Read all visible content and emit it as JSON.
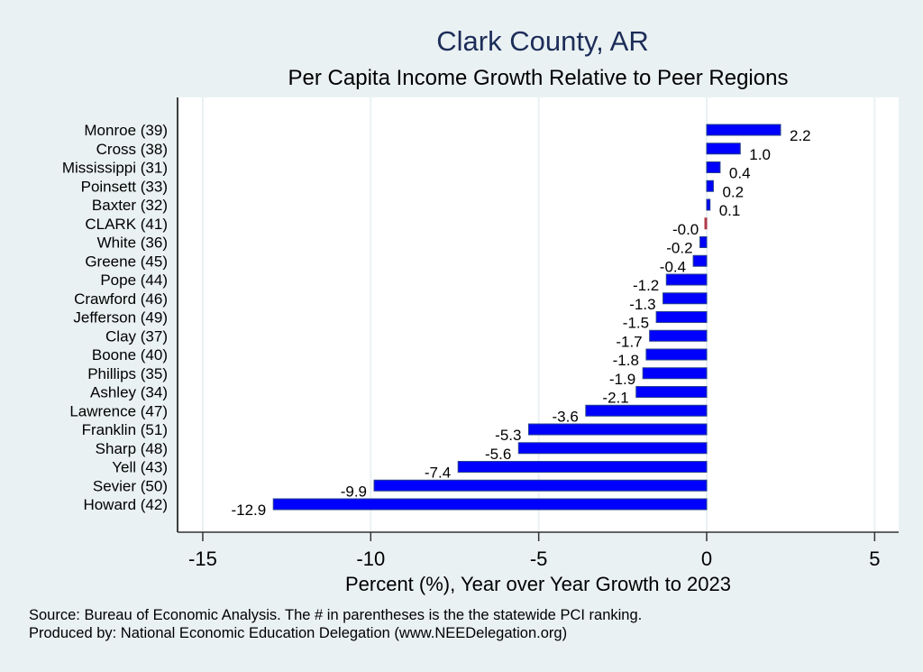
{
  "chart_data": {
    "type": "bar",
    "orientation": "horizontal",
    "title": "Clark County, AR",
    "subtitle": "Per Capita Income Growth Relative to Peer Regions",
    "xlabel": "Percent (%), Year over Year Growth to 2023",
    "ylabel": "",
    "xlim": [
      -15.5,
      5.6
    ],
    "xticks": [
      -15,
      -10,
      -5,
      0,
      5
    ],
    "xtick_labels": [
      "-15",
      "-10",
      "-5",
      "0",
      "5"
    ],
    "grid": "vertical",
    "categories": [
      "Monroe (39)",
      "Cross (38)",
      "Mississippi (31)",
      "Poinsett (33)",
      "Baxter (32)",
      "CLARK (41)",
      "White (36)",
      "Greene (45)",
      "Pope (44)",
      "Crawford (46)",
      "Jefferson (49)",
      "Clay (37)",
      "Boone (40)",
      "Phillips (35)",
      "Ashley (34)",
      "Lawrence (47)",
      "Franklin (51)",
      "Sharp (48)",
      "Yell (43)",
      "Sevier (50)",
      "Howard (42)"
    ],
    "values": [
      2.2,
      1.0,
      0.4,
      0.2,
      0.1,
      -0.02,
      -0.2,
      -0.4,
      -1.2,
      -1.3,
      -1.5,
      -1.7,
      -1.8,
      -1.9,
      -2.1,
      -3.6,
      -5.3,
      -5.6,
      -7.4,
      -9.9,
      -12.9
    ],
    "data_labels": [
      "2.2",
      "1.0",
      "0.4",
      "0.2",
      "0.1",
      "-0.0",
      "-0.2",
      "-0.4",
      "-1.2",
      "-1.3",
      "-1.5",
      "-1.7",
      "-1.8",
      "-1.9",
      "-2.1",
      "-3.6",
      "-5.3",
      "-5.6",
      "-7.4",
      "-9.9",
      "-12.9"
    ],
    "highlight_category": "CLARK (41)",
    "colors": {
      "bar": "#0000ff",
      "bar_edge": "#26428b",
      "highlight": "#b03a48",
      "plot_bg": "#ffffff",
      "page_bg": "#eaf1f3",
      "grid": "#eaf1f3",
      "title": "#1c2d58"
    }
  },
  "notes": {
    "source": "Source: Bureau of Economic Analysis. The # in parentheses is the the statewide PCI ranking.",
    "produced_by": "Produced by: National Economic Education Delegation (www.NEEDelegation.org)"
  }
}
